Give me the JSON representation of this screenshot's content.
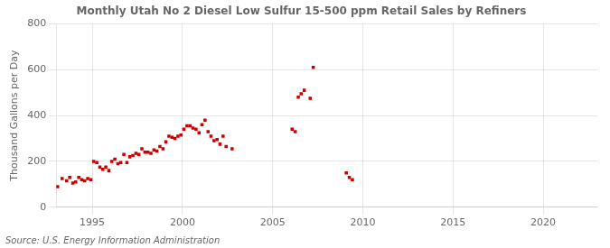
{
  "chart_data": {
    "type": "scatter",
    "title": "Monthly Utah No 2 Diesel Low Sulfur 15-500 ppm Retail Sales by Refiners",
    "ylabel": "Thousand Gallons per Day",
    "annotations": [
      "Source: U.S. Energy Information Administration"
    ],
    "color": "#cc0000",
    "marker": "square",
    "grid": true,
    "xlim": [
      1993.0,
      2023.0
    ],
    "ylim": [
      0,
      800
    ],
    "xticks": [
      1995,
      2000,
      2005,
      2010,
      2015,
      2020
    ],
    "yticks": [
      0,
      200,
      400,
      600,
      800
    ],
    "x": [
      1993.08,
      1993.33,
      1993.58,
      1993.75,
      1993.92,
      1994.08,
      1994.25,
      1994.42,
      1994.58,
      1994.75,
      1994.92,
      1995.08,
      1995.25,
      1995.42,
      1995.58,
      1995.75,
      1995.92,
      1996.08,
      1996.25,
      1996.42,
      1996.58,
      1996.75,
      1996.92,
      1997.08,
      1997.25,
      1997.42,
      1997.58,
      1997.75,
      1997.92,
      1998.08,
      1998.25,
      1998.42,
      1998.58,
      1998.75,
      1998.92,
      1999.08,
      1999.25,
      1999.42,
      1999.58,
      1999.75,
      1999.92,
      2000.08,
      2000.25,
      2000.42,
      2000.58,
      2000.75,
      2000.92,
      2001.08,
      2001.25,
      2001.42,
      2001.58,
      2001.75,
      2001.92,
      2002.08,
      2002.25,
      2002.42,
      2002.75,
      2006.08,
      2006.25,
      2006.42,
      2006.58,
      2006.75,
      2007.08,
      2007.25,
      2009.08,
      2009.25,
      2009.42
    ],
    "values": [
      90,
      125,
      115,
      130,
      105,
      110,
      130,
      120,
      115,
      125,
      120,
      200,
      195,
      175,
      165,
      175,
      160,
      200,
      210,
      190,
      195,
      230,
      195,
      220,
      225,
      235,
      230,
      255,
      240,
      240,
      235,
      250,
      245,
      265,
      255,
      285,
      310,
      305,
      300,
      310,
      315,
      340,
      355,
      355,
      345,
      340,
      325,
      360,
      380,
      330,
      310,
      290,
      295,
      275,
      310,
      265,
      255,
      340,
      330,
      480,
      495,
      510,
      475,
      610,
      150,
      130,
      120
    ]
  }
}
